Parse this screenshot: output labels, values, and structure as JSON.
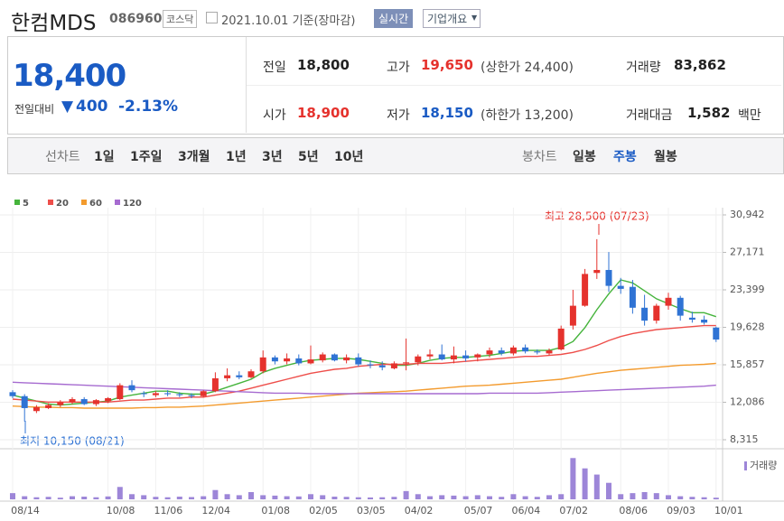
{
  "header": {
    "name": "한컴MDS",
    "code": "086960",
    "market": "코스닥",
    "date": "2021.10.01 기준(장마감)",
    "realtime": "실시간",
    "company_info": "기업개요"
  },
  "quote": {
    "price": "18,400",
    "change_label": "전일대비",
    "change": "400",
    "change_rate": "-2.13%",
    "fields": [
      {
        "label": "전일",
        "value": "18,800"
      },
      {
        "label": "고가",
        "value": "19,650",
        "note": "(상한가 24,400)"
      },
      {
        "label": "거래량",
        "value": "83,862"
      },
      {
        "label": "시가",
        "value": "18,900"
      },
      {
        "label": "저가",
        "value": "18,150",
        "note": "(하한가 13,200)"
      },
      {
        "label": "거래대금",
        "value": "1,582",
        "unit": "백만"
      }
    ]
  },
  "nav": {
    "line_label": "선차트",
    "line_periods": [
      "1일",
      "1주일",
      "3개월",
      "1년",
      "3년",
      "5년",
      "10년"
    ],
    "candle_label": "봉차트",
    "candle_periods": [
      "일봉",
      "주봉",
      "월봉"
    ],
    "selected": "주봉"
  },
  "chart_data": {
    "type": "candlestick",
    "categories": [
      "08/14",
      null,
      null,
      null,
      null,
      null,
      null,
      null,
      "10/08",
      null,
      null,
      null,
      "11/06",
      null,
      null,
      null,
      "12/04",
      null,
      null,
      null,
      null,
      "01/08",
      null,
      null,
      null,
      "02/05",
      null,
      null,
      null,
      "03/05",
      null,
      null,
      null,
      "04/02",
      null,
      null,
      null,
      null,
      "05/07",
      null,
      null,
      null,
      "06/04",
      null,
      null,
      null,
      "07/02",
      null,
      null,
      null,
      null,
      "08/06",
      null,
      null,
      null,
      "09/03",
      null,
      null,
      null,
      "10/01"
    ],
    "open": [
      13100,
      12700,
      11200,
      11500,
      11800,
      12100,
      12400,
      11900,
      12200,
      12400,
      13800,
      13000,
      12800,
      13000,
      12900,
      12800,
      12700,
      13200,
      14500,
      14800,
      14600,
      15200,
      16600,
      16200,
      16500,
      16000,
      16300,
      16900,
      16300,
      16600,
      15900,
      15800,
      15500,
      16000,
      16100,
      16700,
      16900,
      16400,
      16800,
      16600,
      16900,
      17300,
      17000,
      17600,
      17200,
      17000,
      17400,
      19800,
      21800,
      25100,
      25400,
      23800,
      23700,
      21600,
      20300,
      21800,
      22600,
      20600,
      20400,
      19600
    ],
    "high": [
      13300,
      12900,
      11800,
      12000,
      12300,
      12600,
      12600,
      12400,
      12600,
      14000,
      14300,
      13200,
      13200,
      13300,
      13100,
      13000,
      13300,
      15100,
      15500,
      15200,
      15400,
      17300,
      16800,
      17000,
      16900,
      17800,
      17100,
      17000,
      16900,
      17000,
      16300,
      16200,
      16200,
      18500,
      16900,
      17400,
      17900,
      17700,
      17300,
      17000,
      17600,
      17600,
      17800,
      17900,
      17400,
      17500,
      19800,
      23400,
      25500,
      28500,
      27200,
      24600,
      24400,
      22900,
      22000,
      23100,
      22800,
      21200,
      20800,
      19700
    ],
    "low": [
      12500,
      10150,
      11000,
      11400,
      11600,
      11900,
      11800,
      11700,
      12000,
      12300,
      13100,
      12600,
      12600,
      12700,
      12600,
      12500,
      12600,
      13100,
      14200,
      14400,
      14500,
      15000,
      15900,
      15900,
      15800,
      15900,
      16100,
      16200,
      16000,
      15700,
      15500,
      15300,
      15400,
      15300,
      15800,
      16400,
      16300,
      16000,
      16200,
      16200,
      16600,
      16800,
      16800,
      17000,
      16900,
      16800,
      17300,
      19400,
      21700,
      24500,
      23200,
      23000,
      21000,
      19800,
      20000,
      21400,
      20300,
      20100,
      19900,
      18150
    ],
    "close": [
      12700,
      11500,
      11600,
      11800,
      12100,
      12400,
      11900,
      12300,
      12500,
      13800,
      13300,
      12900,
      13000,
      12900,
      12800,
      12700,
      13200,
      14500,
      14800,
      14600,
      15200,
      16600,
      16200,
      16500,
      16000,
      16400,
      16900,
      16300,
      16600,
      15900,
      15800,
      15600,
      16000,
      16100,
      16700,
      16900,
      16400,
      16800,
      16500,
      16900,
      17300,
      17000,
      17600,
      17200,
      17100,
      17300,
      19500,
      21800,
      25000,
      25400,
      23800,
      23500,
      21600,
      20300,
      21800,
      22600,
      20800,
      20400,
      20100,
      18400
    ],
    "up_color": "#e5322d",
    "down_color": "#2f73d4",
    "series": [
      {
        "name": "5",
        "color": "#45b43c",
        "values": [
          12800,
          12500,
          12200,
          11900,
          11800,
          11900,
          12000,
          12100,
          12200,
          12600,
          12800,
          13000,
          13200,
          13200,
          13000,
          12900,
          12900,
          13200,
          13600,
          14000,
          14400,
          15100,
          15500,
          15800,
          16100,
          16300,
          16400,
          16500,
          16500,
          16400,
          16200,
          16000,
          15800,
          15800,
          16000,
          16300,
          16500,
          16600,
          16600,
          16700,
          16800,
          17000,
          17200,
          17300,
          17300,
          17300,
          17600,
          18200,
          19600,
          21400,
          23000,
          24400,
          24100,
          23300,
          22500,
          22000,
          21500,
          21100,
          21100,
          20700
        ]
      },
      {
        "name": "20",
        "color": "#ee4e4a",
        "values": [
          12400,
          12300,
          12200,
          12100,
          12100,
          12100,
          12100,
          12100,
          12100,
          12200,
          12300,
          12300,
          12400,
          12500,
          12500,
          12600,
          12600,
          12800,
          13000,
          13200,
          13500,
          13800,
          14100,
          14400,
          14700,
          15000,
          15200,
          15400,
          15500,
          15700,
          15800,
          15900,
          15900,
          15900,
          16000,
          16000,
          16000,
          16100,
          16200,
          16300,
          16400,
          16500,
          16600,
          16700,
          16700,
          16800,
          16900,
          17100,
          17400,
          17800,
          18300,
          18700,
          19000,
          19200,
          19400,
          19500,
          19600,
          19700,
          19800,
          19800
        ]
      },
      {
        "name": "60",
        "color": "#f39b2e",
        "values": [
          11700,
          11650,
          11600,
          11600,
          11550,
          11550,
          11500,
          11500,
          11500,
          11500,
          11500,
          11550,
          11550,
          11600,
          11600,
          11650,
          11700,
          11800,
          11900,
          12000,
          12100,
          12200,
          12300,
          12400,
          12500,
          12600,
          12700,
          12800,
          12900,
          13000,
          13050,
          13100,
          13150,
          13200,
          13300,
          13400,
          13500,
          13600,
          13700,
          13750,
          13800,
          13900,
          14000,
          14100,
          14200,
          14300,
          14400,
          14600,
          14800,
          15000,
          15150,
          15300,
          15400,
          15500,
          15600,
          15700,
          15800,
          15850,
          15900,
          16000
        ]
      },
      {
        "name": "120",
        "color": "#a66bd0",
        "values": [
          14100,
          14050,
          14000,
          13950,
          13900,
          13850,
          13800,
          13750,
          13700,
          13650,
          13600,
          13550,
          13500,
          13450,
          13400,
          13350,
          13300,
          13250,
          13200,
          13150,
          13100,
          13050,
          13000,
          13000,
          13000,
          12950,
          12950,
          12950,
          12950,
          12950,
          12950,
          12950,
          12950,
          12950,
          12950,
          12950,
          12950,
          12950,
          12950,
          12950,
          13000,
          13000,
          13000,
          13000,
          13000,
          13050,
          13100,
          13150,
          13200,
          13250,
          13300,
          13350,
          13400,
          13450,
          13500,
          13550,
          13600,
          13650,
          13700,
          13800
        ]
      }
    ],
    "volume": {
      "name": "거래량",
      "color": "#9d86d8",
      "values": [
        300000,
        150000,
        100000,
        120000,
        80000,
        150000,
        130000,
        100000,
        140000,
        600000,
        250000,
        200000,
        120000,
        100000,
        130000,
        110000,
        150000,
        450000,
        250000,
        200000,
        350000,
        200000,
        180000,
        150000,
        140000,
        250000,
        200000,
        130000,
        120000,
        100000,
        90000,
        100000,
        120000,
        400000,
        250000,
        150000,
        200000,
        180000,
        150000,
        200000,
        150000,
        120000,
        250000,
        150000,
        120000,
        200000,
        250000,
        2000000,
        1500000,
        1200000,
        800000,
        250000,
        300000,
        350000,
        300000,
        200000,
        150000,
        120000,
        100000,
        80000
      ]
    },
    "vlim": [
      0,
      2100000
    ],
    "ylim": [
      8315,
      30942
    ],
    "yticks": [
      {
        "value": 8315,
        "label": "8,315"
      },
      {
        "value": 12086,
        "label": "12,086"
      },
      {
        "value": 15857,
        "label": "15,857"
      },
      {
        "value": 19628,
        "label": "19,628"
      },
      {
        "value": 23399,
        "label": "23,399"
      },
      {
        "value": 27171,
        "label": "27,171"
      },
      {
        "value": 30942,
        "label": "30,942"
      }
    ],
    "grid": true,
    "annotations": [
      "최고 28,500 (07/23)",
      "최저 10,150 (08/21)"
    ]
  }
}
